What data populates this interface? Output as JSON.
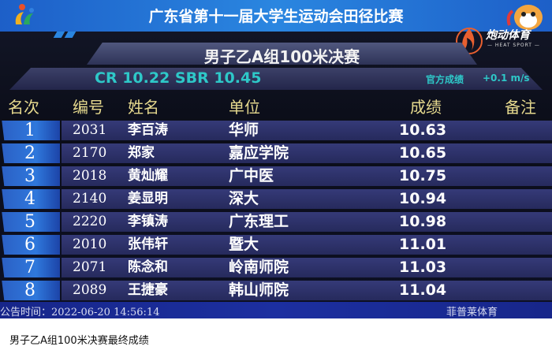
{
  "banner": {
    "title": "广东省第十一届大学生运动会田径比赛"
  },
  "sponsor": {
    "name": "炮动体育",
    "sub": "— HEAT SPORT —"
  },
  "event": {
    "title": "男子乙A组100米决赛",
    "records": "CR 10.22 SBR 10.45",
    "status": "官方成绩",
    "wind": "+0.1 m/s"
  },
  "headers": {
    "rank": "名次",
    "bib": "编号",
    "name": "姓名",
    "unit": "单位",
    "result": "成绩",
    "note": "备注"
  },
  "rows": [
    {
      "rank": "1",
      "bib": "2031",
      "name": "李百涛",
      "unit": "华师",
      "result": "10.63"
    },
    {
      "rank": "2",
      "bib": "2170",
      "name": "郑家",
      "unit": "嘉应学院",
      "result": "10.65"
    },
    {
      "rank": "3",
      "bib": "2018",
      "name": "黄灿耀",
      "unit": "广中医",
      "result": "10.75"
    },
    {
      "rank": "4",
      "bib": "2140",
      "name": "姜显明",
      "unit": "深大",
      "result": "10.94"
    },
    {
      "rank": "5",
      "bib": "2220",
      "name": "李镇涛",
      "unit": "广东理工",
      "result": "10.98"
    },
    {
      "rank": "6",
      "bib": "2010",
      "name": "张伟轩",
      "unit": "暨大",
      "result": "11.01"
    },
    {
      "rank": "7",
      "bib": "2071",
      "name": "陈念和",
      "unit": "岭南师院",
      "result": "11.03"
    },
    {
      "rank": "8",
      "bib": "2089",
      "name": "王捷豪",
      "unit": "韩山师院",
      "result": "11.04"
    }
  ],
  "footer": {
    "time": "公告时间：2022-06-20  14:56:14",
    "brand": "菲普莱体育"
  },
  "caption": "男子乙A组100米决赛最终成绩",
  "colors": {
    "accent": "#2ec8c8",
    "header": "#e6d98e",
    "banner": "#2a86e0"
  }
}
